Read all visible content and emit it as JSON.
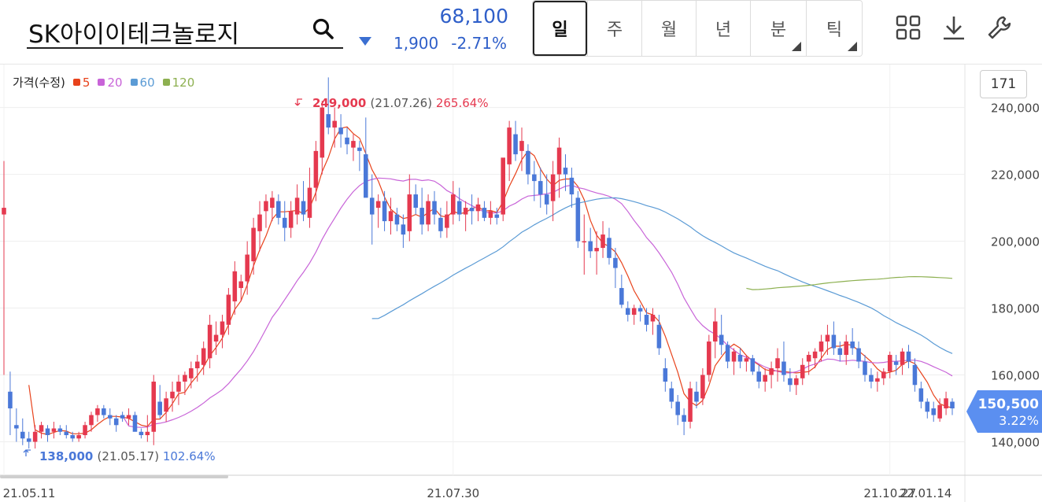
{
  "stock": {
    "name": "SK아이이테크놀로지",
    "price": "68,100",
    "change": "1,900",
    "change_rate": "-2.71%",
    "direction": "down"
  },
  "tabs": [
    {
      "label": "일",
      "active": true,
      "has_menu": false
    },
    {
      "label": "주",
      "active": false,
      "has_menu": false
    },
    {
      "label": "월",
      "active": false,
      "has_menu": false
    },
    {
      "label": "년",
      "active": false,
      "has_menu": false
    },
    {
      "label": "분",
      "active": false,
      "has_menu": true
    },
    {
      "label": "틱",
      "active": false,
      "has_menu": true
    }
  ],
  "tools": [
    "grid-icon",
    "download-icon",
    "wrench-icon"
  ],
  "count_box": "171",
  "legend": {
    "label": "가격(수정)",
    "items": [
      {
        "label": "5",
        "color": "#e8431c"
      },
      {
        "label": "20",
        "color": "#c864d8"
      },
      {
        "label": "60",
        "color": "#5b9bd5"
      },
      {
        "label": "120",
        "color": "#8db050"
      }
    ]
  },
  "colors": {
    "up": "#e5394f",
    "down": "#4a78d8",
    "accent": "#3b6fd1"
  },
  "chart_data": {
    "type": "candlestick",
    "x_tick_labels": [
      "21.05.11",
      "21.07.30",
      "21.10.27",
      "22.01.14"
    ],
    "y_tick_labels": [
      "140,000",
      "160,000",
      "180,000",
      "200,000",
      "220,000",
      "240,000"
    ],
    "y_ticks": [
      140000,
      160000,
      180000,
      200000,
      220000,
      240000
    ],
    "ylim": [
      130000,
      250500
    ],
    "current_price": {
      "label": "150,500",
      "rate": "3.22%"
    },
    "annotations": [
      {
        "type": "max",
        "price": "249,000",
        "date": "(21.07.26)",
        "pct": "265.64%"
      },
      {
        "type": "min",
        "price": "138,000",
        "date": "(21.05.17)",
        "pct": "102.64%"
      }
    ],
    "candles": [
      [
        224000,
        208000,
        160000,
        210000
      ],
      [
        161000,
        155000,
        142000,
        150000
      ],
      [
        150000,
        145000,
        140000,
        144000
      ],
      [
        147000,
        143000,
        139000,
        141000
      ],
      [
        143000,
        141000,
        138000,
        140000
      ],
      [
        145000,
        140000,
        138000,
        143000
      ],
      [
        146000,
        143000,
        141000,
        145000
      ],
      [
        145000,
        144000,
        140000,
        142000
      ],
      [
        146000,
        143000,
        141000,
        144000
      ],
      [
        145000,
        144000,
        142000,
        143000
      ],
      [
        145000,
        143000,
        141000,
        142000
      ],
      [
        143000,
        142000,
        140000,
        141000
      ],
      [
        143000,
        141000,
        140000,
        142000
      ],
      [
        146000,
        142000,
        141000,
        145000
      ],
      [
        149000,
        145000,
        143000,
        148000
      ],
      [
        151000,
        148000,
        146000,
        150000
      ],
      [
        151000,
        150000,
        147000,
        148000
      ],
      [
        150000,
        148000,
        145000,
        147000
      ],
      [
        148000,
        147000,
        143000,
        145000
      ],
      [
        149000,
        148000,
        146000,
        147000
      ],
      [
        150000,
        147000,
        145000,
        148000
      ],
      [
        149000,
        148000,
        144000,
        143000
      ],
      [
        144000,
        143000,
        141000,
        142000
      ],
      [
        148000,
        142000,
        140000,
        143000
      ],
      [
        160000,
        143000,
        139000,
        158000
      ],
      [
        157000,
        152000,
        147000,
        148000
      ],
      [
        155000,
        149000,
        146000,
        153000
      ],
      [
        158000,
        153000,
        149000,
        155000
      ],
      [
        160000,
        155000,
        151000,
        158000
      ],
      [
        161000,
        158000,
        154000,
        160000
      ],
      [
        164000,
        159000,
        156000,
        162000
      ],
      [
        166000,
        162000,
        158000,
        164000
      ],
      [
        170000,
        163000,
        160000,
        168000
      ],
      [
        178000,
        165000,
        162000,
        175000
      ],
      [
        176000,
        170000,
        166000,
        172000
      ],
      [
        178000,
        172000,
        168000,
        176000
      ],
      [
        186000,
        175000,
        172000,
        184000
      ],
      [
        194000,
        182000,
        178000,
        191000
      ],
      [
        190000,
        186000,
        182000,
        188000
      ],
      [
        200000,
        188000,
        184000,
        196000
      ],
      [
        207000,
        194000,
        190000,
        204000
      ],
      [
        212000,
        203000,
        197000,
        208000
      ],
      [
        214000,
        209000,
        204000,
        212000
      ],
      [
        215000,
        210000,
        206000,
        213000
      ],
      [
        214000,
        212000,
        205000,
        207000
      ],
      [
        212000,
        207000,
        200000,
        204000
      ],
      [
        212000,
        204000,
        201000,
        209000
      ],
      [
        217000,
        208000,
        205000,
        213000
      ],
      [
        218000,
        212000,
        206000,
        208000
      ],
      [
        222000,
        207000,
        204000,
        216000
      ],
      [
        230000,
        216000,
        212000,
        227000
      ],
      [
        242000,
        225000,
        220000,
        240000
      ],
      [
        249000,
        238000,
        232000,
        234000
      ],
      [
        240000,
        234000,
        228000,
        236000
      ],
      [
        238000,
        234000,
        228000,
        232000
      ],
      [
        234000,
        231000,
        226000,
        229000
      ],
      [
        232000,
        228000,
        224000,
        230000
      ],
      [
        230000,
        228000,
        221000,
        227000
      ],
      [
        237000,
        226000,
        218000,
        213000
      ],
      [
        220000,
        213000,
        199000,
        208000
      ],
      [
        214000,
        210000,
        204000,
        212000
      ],
      [
        215000,
        212000,
        203000,
        206000
      ],
      [
        213000,
        206000,
        202000,
        209000
      ],
      [
        210000,
        208000,
        203000,
        205000
      ],
      [
        208000,
        205000,
        198000,
        202000
      ],
      [
        220000,
        203000,
        200000,
        214000
      ],
      [
        217000,
        214000,
        208000,
        210000
      ],
      [
        216000,
        210000,
        202000,
        205000
      ],
      [
        214000,
        205000,
        203000,
        212000
      ],
      [
        215000,
        212000,
        205000,
        208000
      ],
      [
        210000,
        207000,
        201000,
        203000
      ],
      [
        212000,
        204000,
        201000,
        208000
      ],
      [
        218000,
        208000,
        205000,
        214000
      ],
      [
        216000,
        212000,
        206000,
        208000
      ],
      [
        212000,
        208000,
        203000,
        210000
      ],
      [
        214000,
        210000,
        205000,
        209000
      ],
      [
        213000,
        209000,
        206000,
        211000
      ],
      [
        212000,
        210000,
        206000,
        207000
      ],
      [
        212000,
        207000,
        205000,
        209000
      ],
      [
        210000,
        208000,
        205000,
        207000
      ],
      [
        220000,
        208000,
        206000,
        225000
      ],
      [
        236000,
        223000,
        218000,
        234000
      ],
      [
        236000,
        232000,
        224000,
        226000
      ],
      [
        234000,
        227000,
        221000,
        230000
      ],
      [
        229000,
        227000,
        217000,
        220000
      ],
      [
        224000,
        220000,
        212000,
        218000
      ],
      [
        222000,
        218000,
        210000,
        214000
      ],
      [
        220000,
        214000,
        208000,
        211000
      ],
      [
        224000,
        212000,
        206000,
        220000
      ],
      [
        231000,
        220000,
        213000,
        228000
      ],
      [
        226000,
        222000,
        215000,
        220000
      ],
      [
        222000,
        219000,
        210000,
        214000
      ],
      [
        215000,
        213000,
        198000,
        200000
      ],
      [
        208000,
        200000,
        190000,
        200000
      ],
      [
        204000,
        200000,
        195000,
        197000
      ],
      [
        203000,
        197000,
        190000,
        198000
      ],
      [
        206000,
        198000,
        195000,
        202000
      ],
      [
        204000,
        201000,
        193000,
        195000
      ],
      [
        198000,
        195000,
        186000,
        192000
      ],
      [
        190000,
        186000,
        180000,
        181000
      ],
      [
        182000,
        180000,
        176000,
        178000
      ],
      [
        181000,
        178000,
        175000,
        180000
      ],
      [
        181000,
        180000,
        176000,
        179000
      ],
      [
        180000,
        178000,
        173000,
        175000
      ],
      [
        180000,
        176000,
        172000,
        178000
      ],
      [
        178000,
        175000,
        166000,
        168000
      ],
      [
        165000,
        162000,
        155000,
        158000
      ],
      [
        158000,
        156000,
        150000,
        152000
      ],
      [
        154000,
        152000,
        145000,
        148000
      ],
      [
        150000,
        148000,
        142000,
        146000
      ],
      [
        158000,
        146000,
        144000,
        156000
      ],
      [
        158000,
        155000,
        150000,
        152000
      ],
      [
        162000,
        153000,
        151000,
        160000
      ],
      [
        172000,
        160000,
        158000,
        170000
      ],
      [
        180000,
        170000,
        165000,
        176000
      ],
      [
        178000,
        172000,
        166000,
        169000
      ],
      [
        170000,
        169000,
        162000,
        164000
      ],
      [
        168000,
        164000,
        160000,
        167000
      ],
      [
        168000,
        166000,
        162000,
        164000
      ],
      [
        166000,
        164000,
        161000,
        165000
      ],
      [
        166000,
        165000,
        160000,
        161000
      ],
      [
        163000,
        161000,
        156000,
        158000
      ],
      [
        162000,
        158000,
        155000,
        160000
      ],
      [
        164000,
        160000,
        156000,
        162000
      ],
      [
        168000,
        162000,
        158000,
        165000
      ],
      [
        170000,
        164000,
        158000,
        160000
      ],
      [
        162000,
        159000,
        155000,
        157000
      ],
      [
        160000,
        157000,
        154000,
        159000
      ],
      [
        165000,
        159000,
        157000,
        163000
      ],
      [
        167000,
        164000,
        160000,
        166000
      ],
      [
        168000,
        165000,
        162000,
        167000
      ],
      [
        172000,
        167000,
        164000,
        170000
      ],
      [
        175000,
        170000,
        166000,
        172000
      ],
      [
        176000,
        172000,
        166000,
        168000
      ],
      [
        170000,
        168000,
        164000,
        166000
      ],
      [
        172000,
        166000,
        163000,
        170000
      ],
      [
        174000,
        170000,
        166000,
        168000
      ],
      [
        170000,
        168000,
        162000,
        164000
      ],
      [
        166000,
        164000,
        158000,
        160000
      ],
      [
        162000,
        160000,
        156000,
        158000
      ],
      [
        161000,
        158000,
        155000,
        159000
      ],
      [
        162000,
        159000,
        157000,
        161000
      ],
      [
        167000,
        161000,
        159000,
        166000
      ],
      [
        166000,
        164000,
        160000,
        163000
      ],
      [
        168000,
        163000,
        160000,
        167000
      ],
      [
        169000,
        167000,
        162000,
        164000
      ],
      [
        165000,
        163000,
        155000,
        157000
      ],
      [
        158000,
        156000,
        150000,
        152000
      ],
      [
        153000,
        152000,
        147000,
        149000
      ],
      [
        152000,
        150000,
        146000,
        148000
      ],
      [
        153000,
        147000,
        146000,
        151000
      ],
      [
        155000,
        150000,
        148000,
        153000
      ],
      [
        153000,
        152000,
        148000,
        150000
      ]
    ],
    "series": [
      {
        "name": "5",
        "color": "#e8431c"
      },
      {
        "name": "20",
        "color": "#c864d8"
      },
      {
        "name": "60",
        "color": "#5b9bd5"
      },
      {
        "name": "120",
        "color": "#8db050"
      }
    ]
  }
}
